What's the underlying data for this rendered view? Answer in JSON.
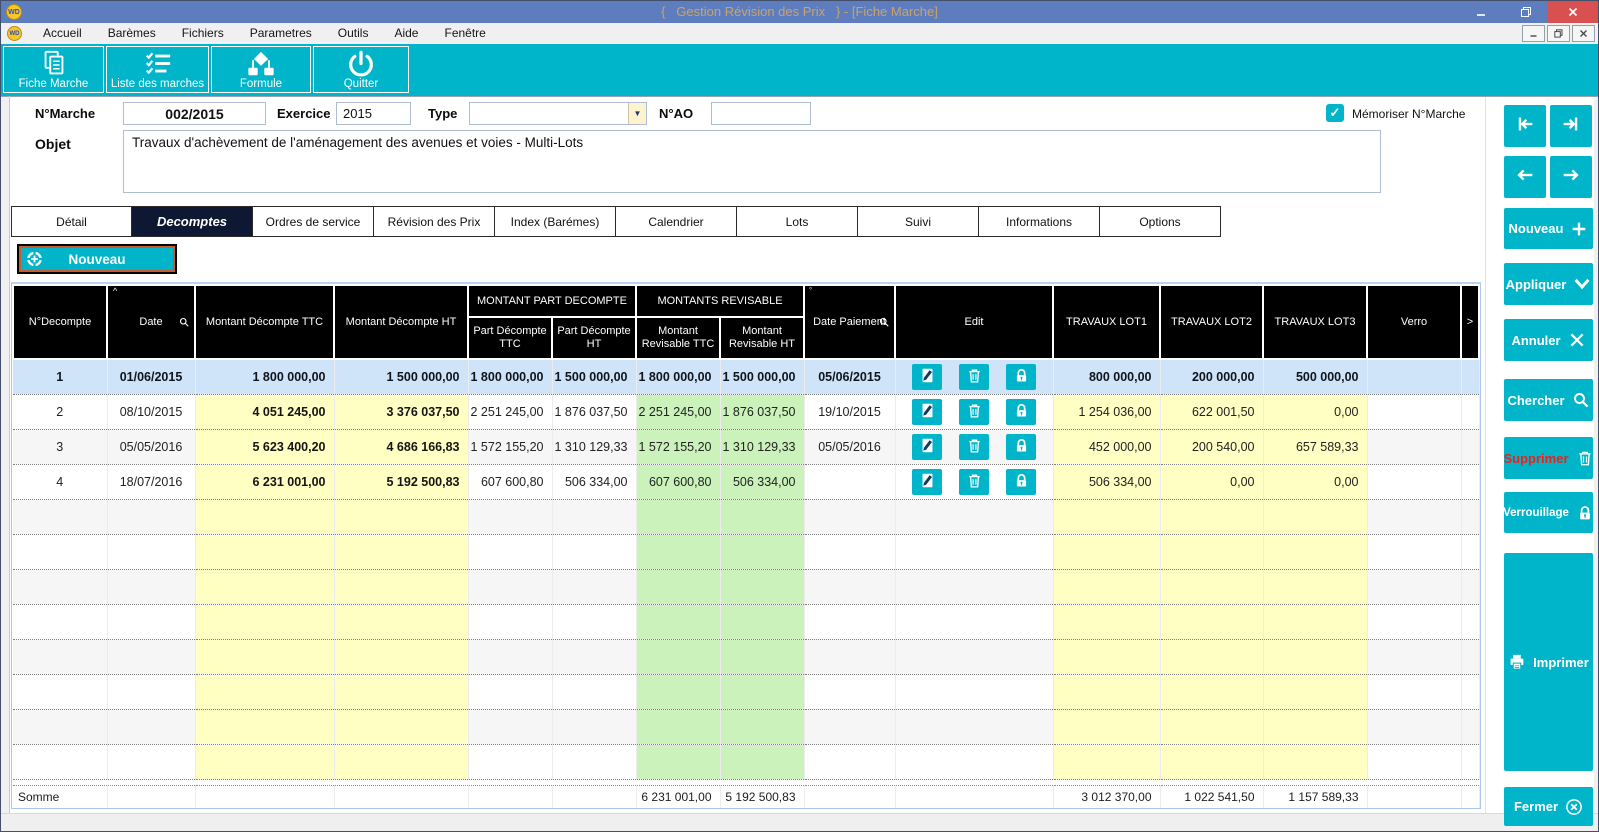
{
  "window": {
    "title": "{   Gestion Révision des Prix   } - [Fiche Marche]",
    "app_badge": "WD"
  },
  "menu": {
    "items": [
      "Accueil",
      "Barèmes",
      "Fichiers",
      "Parametres",
      "Outils",
      "Aide",
      "Fenêtre"
    ]
  },
  "toolbar": {
    "buttons": [
      {
        "label": "Fiche Marche",
        "icon": "document-icon"
      },
      {
        "label": "Liste des marches",
        "icon": "list-check-icon"
      },
      {
        "label": "Formule",
        "icon": "flowchart-icon"
      },
      {
        "label": "Quitter",
        "icon": "power-icon"
      }
    ]
  },
  "form": {
    "n_marche": {
      "label": "N°Marche",
      "value": "002/2015"
    },
    "exercice": {
      "label": "Exercice",
      "value": "2015"
    },
    "type": {
      "label": "Type",
      "value": ""
    },
    "n_ao": {
      "label": "N°AO",
      "value": ""
    },
    "memoriser": {
      "label": "Mémoriser N°Marche",
      "checked": true,
      "check_glyph": "✓"
    },
    "objet": {
      "label": "Objet",
      "value": "Travaux d'achèvement de l'aménagement des avenues et voies - Multi-Lots"
    }
  },
  "tabs": {
    "items": [
      "Détail",
      "Decomptes",
      "Ordres de service",
      "Révision des Prix",
      "Index (Barémes)",
      "Calendrier",
      "Lots",
      "Suivi",
      "Informations",
      "Options"
    ],
    "active": "Decomptes"
  },
  "actions": {
    "nouveau_table": "Nouveau"
  },
  "table": {
    "headers": {
      "num": "N°Decompte",
      "date": "Date",
      "md_ttc": "Montant Décompte TTC",
      "md_ht": "Montant Décompte HT",
      "group_part": "MONTANT PART DECOMPTE",
      "pd_ttc": "Part Décompte TTC",
      "pd_ht": "Part Décompte HT",
      "group_rev": "MONTANTS REVISABLE",
      "mr_ttc": "Montant Revisable TTC",
      "mr_ht": "Montant Revisable HT",
      "date_paiement": "Date Paiement",
      "edit": "Edit",
      "lot1": "TRAVAUX LOT1",
      "lot2": "TRAVAUX LOT2",
      "lot3": "TRAVAUX LOT3",
      "verro": "Verro",
      "scroll": ">"
    },
    "rows": [
      {
        "num": "1",
        "date": "01/06/2015",
        "md_ttc": "1 800 000,00",
        "md_ht": "1 500 000,00",
        "pd_ttc": "1 800 000,00",
        "pd_ht": "1 500 000,00",
        "mr_ttc": "1 800 000,00",
        "mr_ht": "1 500 000,00",
        "date_paiement": "05/06/2015",
        "lot1": "800 000,00",
        "lot2": "200 000,00",
        "lot3": "500 000,00",
        "verro": "",
        "selected": true
      },
      {
        "num": "2",
        "date": "08/10/2015",
        "md_ttc": "4 051 245,00",
        "md_ht": "3 376 037,50",
        "pd_ttc": "2 251 245,00",
        "pd_ht": "1 876 037,50",
        "mr_ttc": "2 251 245,00",
        "mr_ht": "1 876 037,50",
        "date_paiement": "19/10/2015",
        "lot1": "1 254 036,00",
        "lot2": "622 001,50",
        "lot3": "0,00",
        "verro": "",
        "selected": false
      },
      {
        "num": "3",
        "date": "05/05/2016",
        "md_ttc": "5 623 400,20",
        "md_ht": "4 686 166,83",
        "pd_ttc": "1 572 155,20",
        "pd_ht": "1 310 129,33",
        "mr_ttc": "1 572 155,20",
        "mr_ht": "1 310 129,33",
        "date_paiement": "05/05/2016",
        "lot1": "452 000,00",
        "lot2": "200 540,00",
        "lot3": "657 589,33",
        "verro": "",
        "selected": false
      },
      {
        "num": "4",
        "date": "18/07/2016",
        "md_ttc": "6 231 001,00",
        "md_ht": "5 192 500,83",
        "pd_ttc": "607 600,80",
        "pd_ht": "506 334,00",
        "mr_ttc": "607 600,80",
        "mr_ht": "506 334,00",
        "date_paiement": "",
        "lot1": "506 334,00",
        "lot2": "0,00",
        "lot3": "0,00",
        "verro": "",
        "selected": false
      }
    ],
    "empty_row_count": 8,
    "somme": {
      "label": "Somme",
      "mr_ttc": "6 231 001,00",
      "mr_ht": "5 192 500,83",
      "lot1": "3 012 370,00",
      "lot2": "1 022 541,50",
      "lot3": "1 157 589,33"
    }
  },
  "sidebar": {
    "nav": [
      {
        "id": "first",
        "icon": "nav-first-icon"
      },
      {
        "id": "last",
        "icon": "nav-last-icon"
      },
      {
        "id": "previous",
        "icon": "nav-left-icon"
      },
      {
        "id": "next",
        "icon": "nav-right-icon"
      }
    ],
    "buttons": [
      {
        "id": "nouveau",
        "label": "Nouveau",
        "icon": "plus-icon"
      },
      {
        "id": "appliquer",
        "label": "Appliquer",
        "icon": "chevron-down-icon"
      },
      {
        "id": "annuler",
        "label": "Annuler",
        "icon": "x-icon"
      },
      {
        "id": "chercher",
        "label": "Chercher",
        "icon": "search-icon"
      },
      {
        "id": "supprimer",
        "label": "Supprimer",
        "icon": "trash-icon",
        "label_color": "#f01f1a"
      },
      {
        "id": "verrouillage",
        "label": "Verrouillage",
        "icon": "lock-icon"
      },
      {
        "id": "imprimer",
        "label": "Imprimer",
        "icon": "printer-icon"
      },
      {
        "id": "fermer",
        "label": "Fermer",
        "icon": "x-circle-icon"
      }
    ]
  },
  "colors": {
    "accent_cyan": "#00b5c9",
    "titlebar_blue": "#5e7dbf",
    "title_text_gold": "#c9a469",
    "close_red": "#d8504f",
    "active_tab_navy": "#0e1833",
    "selected_row_blue": "#cfe4f8",
    "cell_yellow": "#ffffc3",
    "cell_green": "#cbf2ba",
    "supprimer_red": "#f01f1a"
  }
}
